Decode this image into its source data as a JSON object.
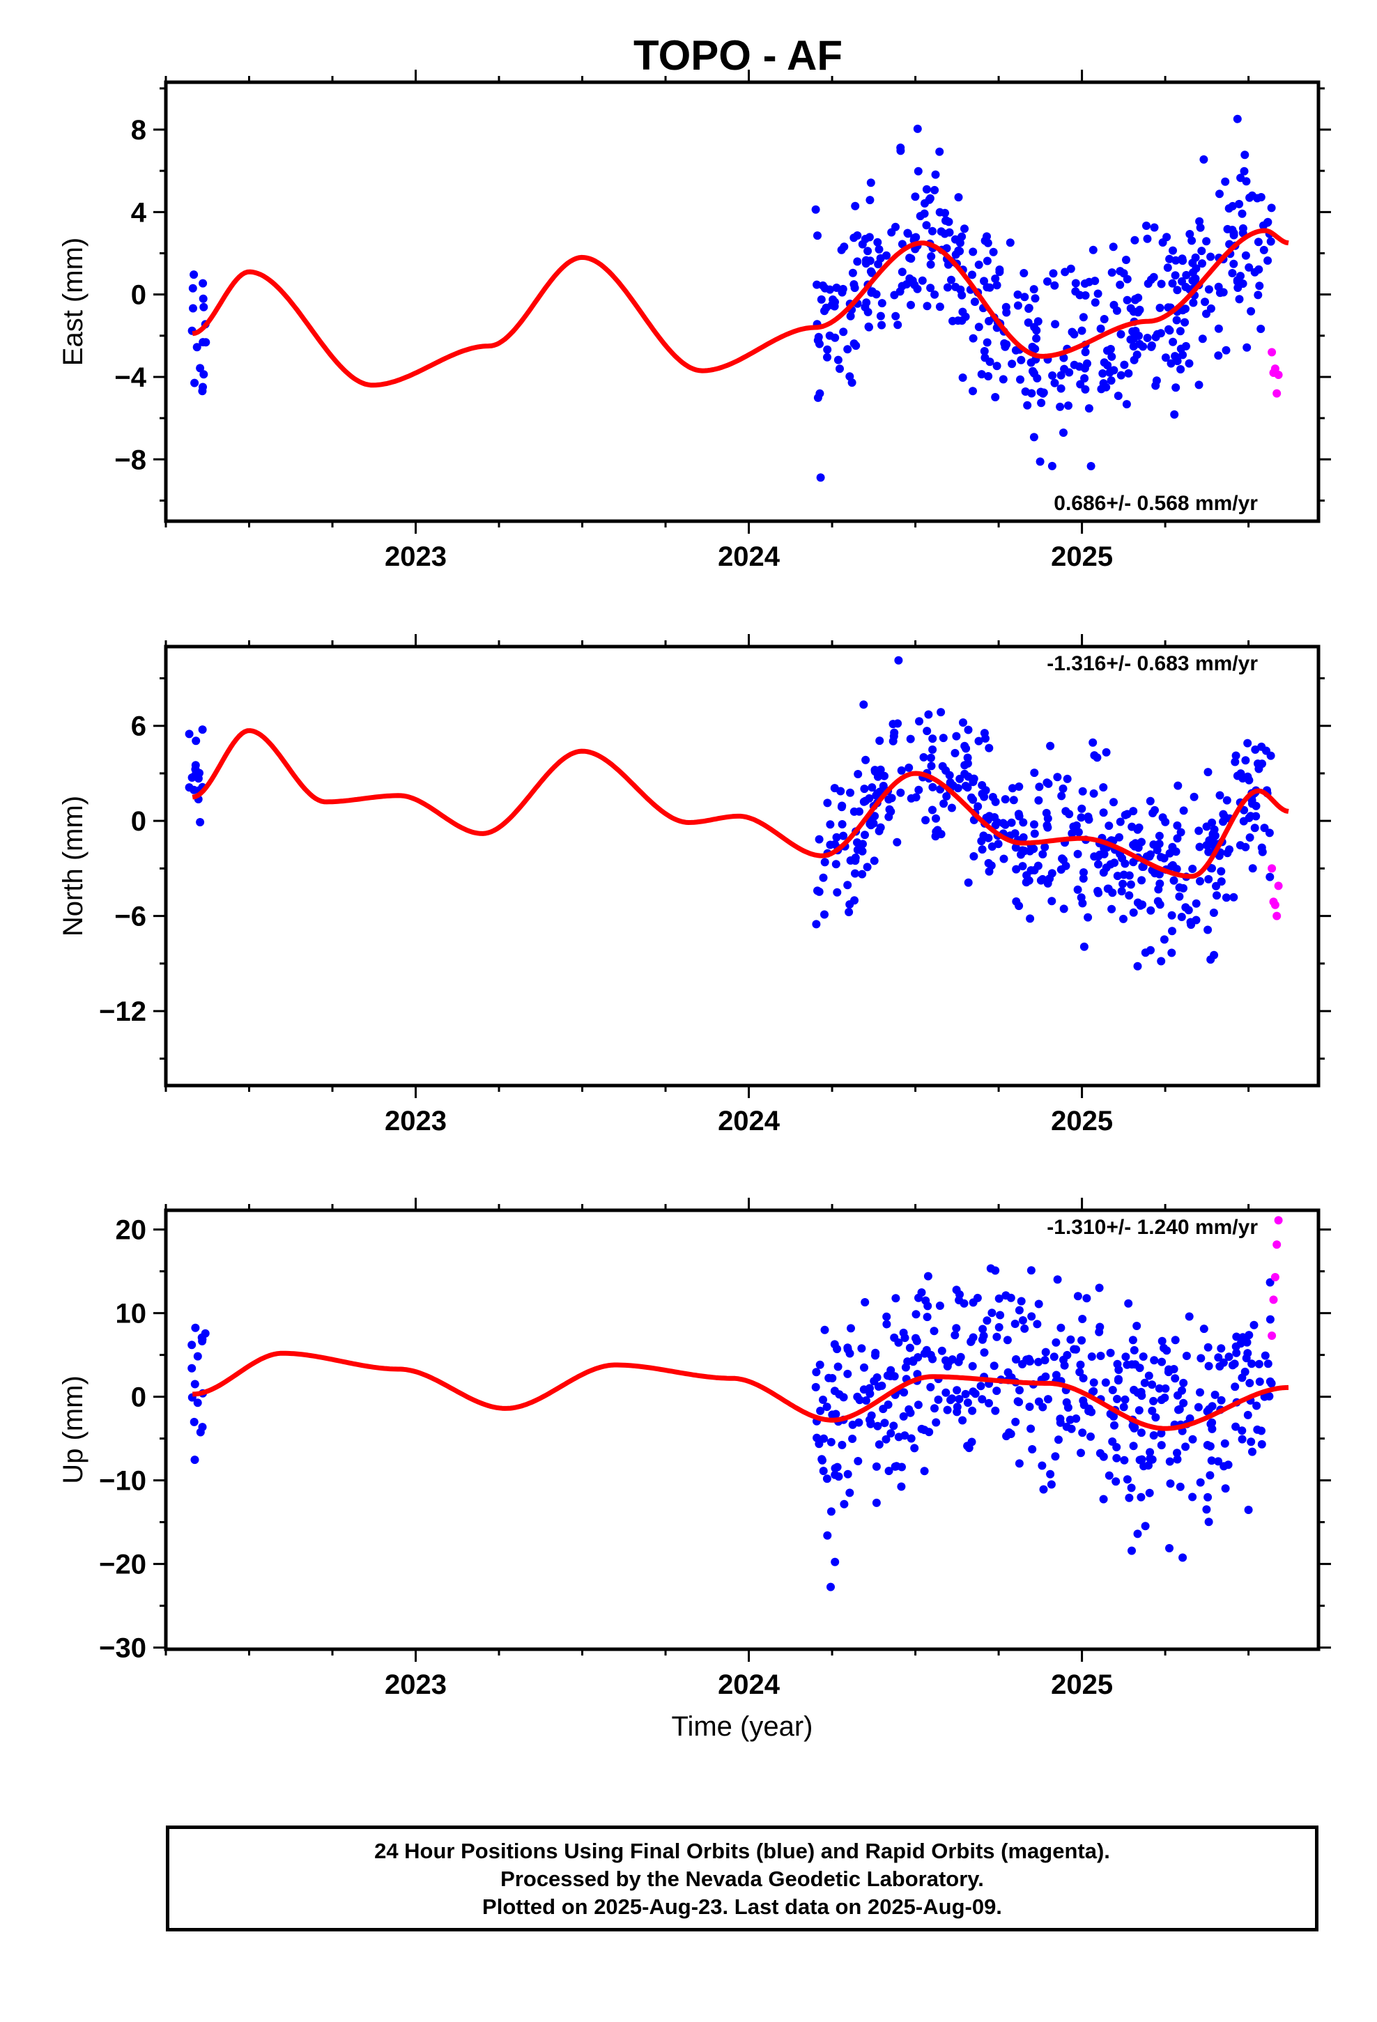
{
  "title": "TOPO - AF",
  "chart_data": [
    {
      "type": "scatter",
      "panel": "east",
      "ylabel": "East (mm)",
      "xlim": [
        2022.25,
        2025.71
      ],
      "ylim": [
        -11.0,
        10.3
      ],
      "yticks": [
        -8,
        -4,
        0,
        4,
        8
      ],
      "xticks": [
        2023,
        2024,
        2025
      ],
      "rate_text": "0.686+/- 0.568 mm/yr",
      "series": [
        {
          "color": "#0000ff",
          "clusters": [
            {
              "x0": 2022.32,
              "x1": 2022.37,
              "n": 16,
              "center": -1.5,
              "sd": 2.0
            },
            {
              "x0": 2024.2,
              "x1": 2025.57,
              "n": 470,
              "model": "fit",
              "sd": 2.1
            }
          ]
        },
        {
          "color": "#ff00ff",
          "points": [
            [
              2025.57,
              -2.8
            ],
            [
              2025.575,
              -3.8
            ],
            [
              2025.58,
              -3.6
            ],
            [
              2025.585,
              -4.8
            ],
            [
              2025.59,
              -3.9
            ]
          ]
        },
        {
          "type": "line",
          "color": "#ff0000",
          "x": [
            2022.33,
            2022.5,
            2022.87,
            2023.22,
            2023.5,
            2023.86,
            2024.2,
            2024.52,
            2024.88,
            2025.2,
            2025.55,
            2025.62
          ],
          "values": [
            -1.9,
            1.1,
            -4.4,
            -2.5,
            1.8,
            -3.7,
            -1.6,
            2.5,
            -3.0,
            -1.3,
            3.1,
            2.5
          ]
        }
      ]
    },
    {
      "type": "scatter",
      "panel": "north",
      "ylabel": "North (mm)",
      "xlim": [
        2022.25,
        2025.71
      ],
      "ylim": [
        -16.7,
        11.0
      ],
      "yticks": [
        -12,
        -6,
        0,
        6
      ],
      "xticks": [
        2023,
        2024,
        2025
      ],
      "rate_text": "-1.316+/- 0.683 mm/yr",
      "series": [
        {
          "color": "#0000ff",
          "clusters": [
            {
              "x0": 2022.32,
              "x1": 2022.37,
              "n": 16,
              "center": 3.0,
              "sd": 2.0
            },
            {
              "x0": 2024.2,
              "x1": 2025.57,
              "n": 470,
              "model": "fit",
              "sd": 2.4
            }
          ]
        },
        {
          "color": "#ff00ff",
          "points": [
            [
              2025.57,
              -3.0
            ],
            [
              2025.575,
              -5.1
            ],
            [
              2025.58,
              -5.3
            ],
            [
              2025.585,
              -6.0
            ],
            [
              2025.59,
              -4.1
            ]
          ]
        },
        {
          "type": "line",
          "color": "#ff0000",
          "x": [
            2022.33,
            2022.5,
            2022.73,
            2022.95,
            2023.2,
            2023.5,
            2023.82,
            2023.97,
            2024.22,
            2024.5,
            2024.82,
            2025.0,
            2025.33,
            2025.53,
            2025.62
          ],
          "values": [
            1.5,
            5.7,
            1.2,
            1.6,
            -0.8,
            4.4,
            -0.1,
            0.3,
            -2.2,
            3.0,
            -1.4,
            -1.1,
            -3.5,
            1.9,
            0.6
          ]
        }
      ]
    },
    {
      "type": "scatter",
      "panel": "up",
      "ylabel": "Up (mm)",
      "xlabel": "Time (year)",
      "xlim": [
        2022.25,
        2025.71
      ],
      "ylim": [
        -30.2,
        22.3
      ],
      "yticks": [
        -30,
        -20,
        -10,
        0,
        10,
        20
      ],
      "xticks": [
        2023,
        2024,
        2025
      ],
      "rate_text": "-1.310+/- 1.240 mm/yr",
      "series": [
        {
          "color": "#0000ff",
          "clusters": [
            {
              "x0": 2022.32,
              "x1": 2022.37,
              "n": 16,
              "center": 2.0,
              "sd": 5.0
            },
            {
              "x0": 2024.2,
              "x1": 2025.57,
              "n": 470,
              "model": "fit",
              "sd": 6.0
            }
          ]
        },
        {
          "color": "#ff00ff",
          "points": [
            [
              2025.57,
              7.3
            ],
            [
              2025.575,
              11.6
            ],
            [
              2025.58,
              14.3
            ],
            [
              2025.585,
              18.2
            ],
            [
              2025.59,
              21.1
            ]
          ]
        },
        {
          "type": "line",
          "color": "#ff0000",
          "x": [
            2022.33,
            2022.6,
            2022.95,
            2023.27,
            2023.6,
            2023.95,
            2024.25,
            2024.55,
            2024.9,
            2025.25,
            2025.62
          ],
          "values": [
            0.3,
            5.2,
            3.3,
            -1.4,
            3.8,
            2.2,
            -2.8,
            2.4,
            1.6,
            -3.8,
            1.1
          ]
        }
      ]
    }
  ],
  "footer": {
    "line1": "24 Hour Positions Using Final Orbits (blue) and Rapid Orbits (magenta).",
    "line2": "Processed by the Nevada Geodetic Laboratory.",
    "line3": "Plotted on 2025-Aug-23. Last data on 2025-Aug-09."
  }
}
